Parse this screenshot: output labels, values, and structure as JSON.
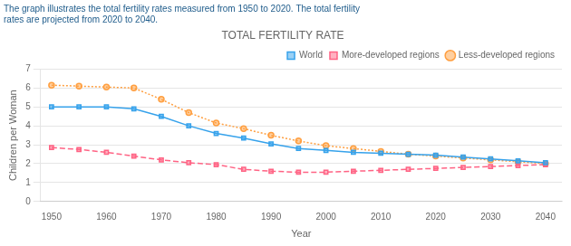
{
  "chart_data": {
    "type": "line",
    "title": "TOTAL FERTILITY RATE",
    "subtitle": [
      "The graph illustrates the total fertility rates measured from 1950 to 2020. The total fertility",
      "rates are projected from 2020 to 2040."
    ],
    "x_label": "Year",
    "y_label": "Children per Woman",
    "x": [
      1950,
      1955,
      1960,
      1965,
      1970,
      1975,
      1980,
      1985,
      1990,
      1995,
      2000,
      2005,
      2010,
      2015,
      2020,
      2025,
      2030,
      2035,
      2040
    ],
    "series": [
      {
        "name": "World",
        "line_style": "solid",
        "marker": "square",
        "values": [
          5.0,
          5.0,
          5.0,
          4.9,
          4.5,
          4.0,
          3.6,
          3.35,
          3.05,
          2.8,
          2.7,
          2.6,
          2.55,
          2.5,
          2.45,
          2.35,
          2.25,
          2.15,
          2.05
        ]
      },
      {
        "name": "More-developed regions",
        "line_style": "dashed",
        "marker": "square",
        "values": [
          2.85,
          2.75,
          2.6,
          2.4,
          2.2,
          2.05,
          1.95,
          1.7,
          1.6,
          1.55,
          1.55,
          1.6,
          1.65,
          1.7,
          1.75,
          1.8,
          1.85,
          1.9,
          1.95
        ]
      },
      {
        "name": "Less-developed regions",
        "line_style": "dotted",
        "marker": "circle",
        "values": [
          6.15,
          6.1,
          6.05,
          6.0,
          5.4,
          4.7,
          4.15,
          3.85,
          3.5,
          3.2,
          2.95,
          2.8,
          2.65,
          2.5,
          2.4,
          2.3,
          2.2,
          2.1,
          2.0
        ]
      }
    ],
    "xlim": [
      1948,
      2043
    ],
    "xticks": [
      1950,
      1960,
      1970,
      1980,
      1990,
      2000,
      2010,
      2020,
      2030,
      2040
    ],
    "ylim": [
      0,
      7
    ],
    "yticks": [
      0,
      1,
      2,
      3,
      4,
      5,
      6,
      7
    ],
    "grid": "y",
    "legend": "upper right"
  }
}
